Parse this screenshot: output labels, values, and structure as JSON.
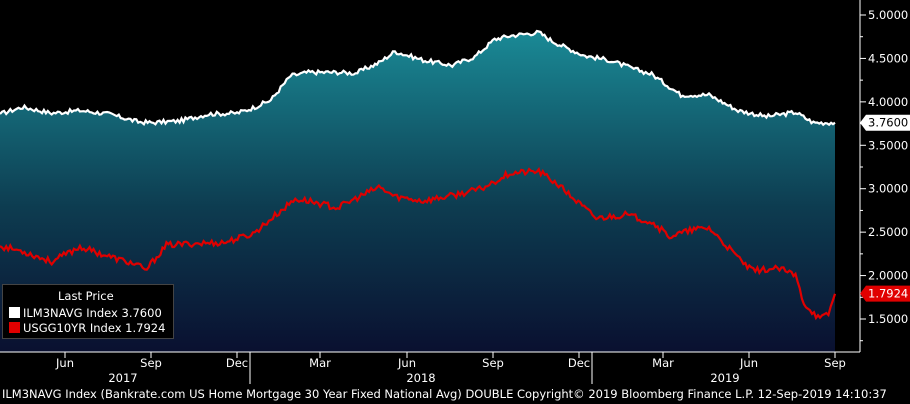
{
  "footer": {
    "text": "ILM3NAVG Index (Bankrate.com US Home Mortgage 30 Year Fixed National Avg) DOUBLE Copyright© 2019 Bloomberg Finance L.P. 12-Sep-2019 14:10:37"
  },
  "legend": {
    "title": "Last Price",
    "entries": [
      {
        "label": "ILM3NAVG Index 3.7600",
        "color": "#ffffff"
      },
      {
        "label": "USGG10YR Index 1.7924",
        "color": "#e00000"
      }
    ]
  },
  "colors": {
    "background": "#000000",
    "area_top": "#1a8a96",
    "area_bottom": "#0a1030",
    "series2": "#e00000",
    "badge1_bg": "#ffffff",
    "badge2_bg": "#e00000"
  },
  "chart_data": {
    "type": "area",
    "title": "",
    "xlabel": "",
    "ylabel": "",
    "ylim": [
      1.0,
      5.1
    ],
    "y_ticks": [
      "5.0000",
      "4.5000",
      "4.0000",
      "3.5000",
      "3.0000",
      "2.5000",
      "2.0000",
      "1.5000"
    ],
    "x_tick_labels": [
      "Jun",
      "Sep",
      "Dec",
      "Mar",
      "Jun",
      "Sep",
      "Dec",
      "Mar",
      "Jun",
      "Sep"
    ],
    "year_labels": [
      "2017",
      "2018",
      "2019"
    ],
    "x_range": [
      "2017-04-07",
      "2019-09-12"
    ],
    "grid": false,
    "legend_position": "bottom-left",
    "last_values": [
      {
        "text": "3.7600",
        "series": 0
      },
      {
        "text": "1.7924",
        "series": 1
      }
    ],
    "series": [
      {
        "name": "ILM3NAVG Index",
        "style": "area",
        "x": [
          "2017-04-07",
          "2017-05-01",
          "2017-06-01",
          "2017-07-01",
          "2017-08-01",
          "2017-09-01",
          "2017-09-15",
          "2017-10-15",
          "2017-11-15",
          "2017-12-15",
          "2018-01-01",
          "2018-01-20",
          "2018-02-10",
          "2018-03-01",
          "2018-04-01",
          "2018-04-20",
          "2018-05-15",
          "2018-06-01",
          "2018-07-01",
          "2018-08-01",
          "2018-08-25",
          "2018-09-15",
          "2018-10-01",
          "2018-11-01",
          "2018-11-15",
          "2018-12-01",
          "2018-12-20",
          "2019-01-15",
          "2019-02-10",
          "2019-03-01",
          "2019-04-01",
          "2019-05-01",
          "2019-06-01",
          "2019-07-01",
          "2019-08-01",
          "2019-08-20",
          "2019-09-12"
        ],
        "values": [
          3.86,
          3.94,
          3.87,
          3.9,
          3.86,
          3.77,
          3.76,
          3.78,
          3.86,
          3.87,
          3.93,
          4.02,
          4.3,
          4.34,
          4.34,
          4.33,
          4.45,
          4.58,
          4.48,
          4.42,
          4.52,
          4.72,
          4.76,
          4.8,
          4.7,
          4.62,
          4.53,
          4.48,
          4.38,
          4.32,
          4.08,
          4.08,
          3.9,
          3.83,
          3.88,
          3.76,
          3.76
        ]
      },
      {
        "name": "USGG10YR Index",
        "style": "line",
        "x": [
          "2017-04-07",
          "2017-05-01",
          "2017-06-01",
          "2017-07-01",
          "2017-08-01",
          "2017-09-01",
          "2017-09-08",
          "2017-10-01",
          "2017-11-01",
          "2017-12-01",
          "2018-01-01",
          "2018-01-20",
          "2018-02-15",
          "2018-03-01",
          "2018-04-01",
          "2018-05-15",
          "2018-06-01",
          "2018-07-01",
          "2018-08-01",
          "2018-09-01",
          "2018-10-01",
          "2018-11-01",
          "2018-11-20",
          "2018-12-15",
          "2019-01-01",
          "2019-02-01",
          "2019-03-01",
          "2019-03-20",
          "2019-04-15",
          "2019-05-01",
          "2019-05-25",
          "2019-06-15",
          "2019-07-15",
          "2019-08-01",
          "2019-08-10",
          "2019-08-27",
          "2019-09-05",
          "2019-09-12"
        ],
        "values": [
          2.34,
          2.28,
          2.16,
          2.33,
          2.22,
          2.12,
          2.05,
          2.35,
          2.37,
          2.38,
          2.48,
          2.65,
          2.88,
          2.86,
          2.78,
          3.02,
          2.91,
          2.86,
          2.92,
          3.0,
          3.18,
          3.2,
          3.06,
          2.82,
          2.66,
          2.7,
          2.62,
          2.45,
          2.53,
          2.55,
          2.28,
          2.06,
          2.08,
          2.0,
          1.68,
          1.5,
          1.56,
          1.79
        ]
      }
    ]
  }
}
